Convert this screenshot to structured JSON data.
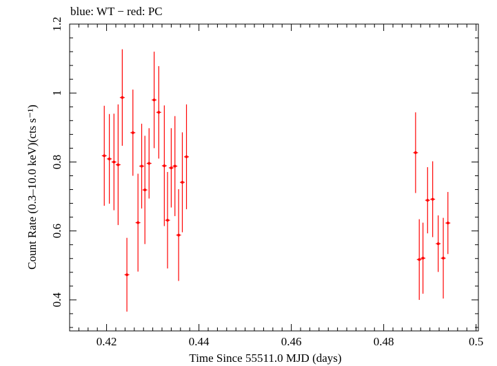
{
  "chart_data": {
    "type": "scatter",
    "title": "blue: WT − red: PC",
    "xlabel": "Time Since 55511.0 MJD (days)",
    "ylabel": "Count Rate (0.3–10.0 keV)(cts s⁻¹)",
    "xlim": [
      0.412,
      0.5005
    ],
    "ylim": [
      0.31,
      1.2
    ],
    "x_ticks": [
      0.42,
      0.44,
      0.46,
      0.48,
      0.5
    ],
    "x_tick_labels": [
      "0.42",
      "0.44",
      "0.46",
      "0.48",
      "0.5"
    ],
    "y_ticks": [
      0.4,
      0.6,
      0.8,
      1.0,
      1.2
    ],
    "y_tick_labels": [
      "0.4",
      "0.6",
      "0.8",
      "1",
      "1.2"
    ],
    "grid": false,
    "series": [
      {
        "color": "#ff0000",
        "points": [
          {
            "x": 0.4195,
            "y": 0.818,
            "err": 0.145
          },
          {
            "x": 0.4206,
            "y": 0.809,
            "err": 0.13
          },
          {
            "x": 0.4216,
            "y": 0.8,
            "err": 0.14
          },
          {
            "x": 0.4225,
            "y": 0.792,
            "err": 0.175
          },
          {
            "x": 0.4234,
            "y": 0.987,
            "err": 0.14
          },
          {
            "x": 0.4244,
            "y": 0.473,
            "err": 0.107
          },
          {
            "x": 0.4257,
            "y": 0.885,
            "err": 0.125
          },
          {
            "x": 0.4268,
            "y": 0.624,
            "err": 0.142
          },
          {
            "x": 0.4276,
            "y": 0.788,
            "err": 0.123
          },
          {
            "x": 0.4283,
            "y": 0.719,
            "err": 0.157
          },
          {
            "x": 0.4292,
            "y": 0.796,
            "err": 0.102
          },
          {
            "x": 0.4303,
            "y": 0.98,
            "err": 0.14
          },
          {
            "x": 0.4313,
            "y": 0.944,
            "err": 0.134
          },
          {
            "x": 0.4325,
            "y": 0.789,
            "err": 0.175
          },
          {
            "x": 0.4332,
            "y": 0.631,
            "err": 0.14
          },
          {
            "x": 0.434,
            "y": 0.783,
            "err": 0.115
          },
          {
            "x": 0.4348,
            "y": 0.788,
            "err": 0.145
          },
          {
            "x": 0.4356,
            "y": 0.588,
            "err": 0.133
          },
          {
            "x": 0.4364,
            "y": 0.741,
            "err": 0.145
          },
          {
            "x": 0.4373,
            "y": 0.815,
            "err": 0.152
          },
          {
            "x": 0.4869,
            "y": 0.827,
            "err": 0.117
          },
          {
            "x": 0.4877,
            "y": 0.517,
            "err": 0.117
          },
          {
            "x": 0.4885,
            "y": 0.521,
            "err": 0.103
          },
          {
            "x": 0.4895,
            "y": 0.689,
            "err": 0.096
          },
          {
            "x": 0.4906,
            "y": 0.692,
            "err": 0.11
          },
          {
            "x": 0.4918,
            "y": 0.563,
            "err": 0.082
          },
          {
            "x": 0.4929,
            "y": 0.521,
            "err": 0.117
          },
          {
            "x": 0.4939,
            "y": 0.623,
            "err": 0.09
          }
        ]
      }
    ]
  }
}
